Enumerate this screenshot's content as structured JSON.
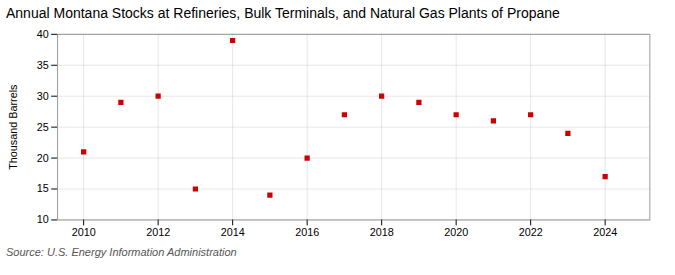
{
  "chart_data": {
    "type": "scatter",
    "title": "Annual Montana Stocks at Refineries, Bulk Terminals, and Natural Gas Plants of Propane",
    "ylabel": "Thousand Barrels",
    "source": "Source: U.S. Energy Information Administration",
    "x": [
      2010,
      2011,
      2012,
      2013,
      2014,
      2015,
      2016,
      2017,
      2018,
      2019,
      2020,
      2021,
      2022,
      2023,
      2024
    ],
    "values": [
      21,
      29,
      30,
      15,
      39,
      14,
      20,
      27,
      30,
      29,
      27,
      26,
      27,
      24,
      17
    ],
    "color": "#cc0000",
    "marker": "square",
    "xlim": [
      2009.3,
      2025.2
    ],
    "xticks": [
      2010,
      2012,
      2014,
      2016,
      2018,
      2020,
      2022,
      2024
    ],
    "ylim": [
      10,
      40
    ],
    "yticks": [
      10,
      15,
      20,
      25,
      30,
      35,
      40
    ],
    "grid": true
  }
}
